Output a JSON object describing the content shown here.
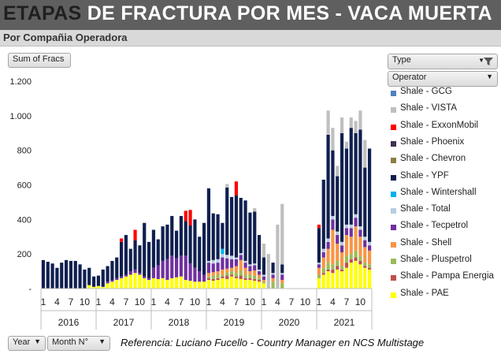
{
  "header": {
    "title_part1": "ETAPAS",
    "title_part2": " DE FRACTURA POR MES -  VACA MUERTA",
    "subtitle": "Por Compañia Operadora"
  },
  "field_buttons": {
    "value": "Sum of Fracs",
    "type": "Type",
    "operator": "Operator",
    "year": "Year",
    "month": "Month N°"
  },
  "footer": {
    "note": "Referencia: Luciano Fucello - Country Manager en NCS Multistage"
  },
  "colors": {
    "title_bar": "#5f5f5f",
    "subtitle_bar": "#d9d9d9"
  },
  "chart_data": {
    "type": "bar",
    "stacked": true,
    "title": "ETAPAS DE FRACTURA POR MES -  VACA MUERTA",
    "subtitle": "Por Compañia Operadora",
    "ylim": [
      0,
      1200
    ],
    "y_ticks": [
      0,
      200,
      400,
      600,
      800,
      1000,
      1200
    ],
    "y_tick_labels": [
      "-",
      "200",
      "400",
      "600",
      "800",
      "1.000",
      "1.200"
    ],
    "grid": false,
    "legend_position": "right",
    "years": [
      "2016",
      "2017",
      "2018",
      "2019",
      "2020",
      "2021"
    ],
    "month_tick_labels": [
      "1",
      "4",
      "7",
      "10"
    ],
    "categories": [
      "2016-01",
      "2016-02",
      "2016-03",
      "2016-04",
      "2016-05",
      "2016-06",
      "2016-07",
      "2016-08",
      "2016-09",
      "2016-10",
      "2016-11",
      "2016-12",
      "2017-01",
      "2017-02",
      "2017-03",
      "2017-04",
      "2017-05",
      "2017-06",
      "2017-07",
      "2017-08",
      "2017-09",
      "2017-10",
      "2017-11",
      "2017-12",
      "2018-01",
      "2018-02",
      "2018-03",
      "2018-04",
      "2018-05",
      "2018-06",
      "2018-07",
      "2018-08",
      "2018-09",
      "2018-10",
      "2018-11",
      "2018-12",
      "2019-01",
      "2019-02",
      "2019-03",
      "2019-04",
      "2019-05",
      "2019-06",
      "2019-07",
      "2019-08",
      "2019-09",
      "2019-10",
      "2019-11",
      "2019-12",
      "2020-01",
      "2020-02",
      "2020-03",
      "2020-04",
      "2020-05",
      "2020-06",
      "2020-07",
      "2020-08",
      "2020-09",
      "2020-10",
      "2020-11",
      "2020-12",
      "2021-01",
      "2021-02",
      "2021-03",
      "2021-04",
      "2021-05",
      "2021-06",
      "2021-07",
      "2021-08",
      "2021-09",
      "2021-10",
      "2021-11",
      "2021-12"
    ],
    "series": [
      {
        "name": "Shale - PAE",
        "color": "#ffff00",
        "values": [
          0,
          0,
          0,
          0,
          0,
          0,
          0,
          0,
          0,
          0,
          20,
          10,
          15,
          10,
          30,
          40,
          50,
          60,
          70,
          80,
          90,
          80,
          60,
          50,
          60,
          55,
          60,
          50,
          60,
          65,
          70,
          50,
          45,
          40,
          40,
          40,
          50,
          45,
          50,
          60,
          55,
          70,
          60,
          55,
          50,
          50,
          45,
          40,
          30,
          0,
          0,
          0,
          0,
          0,
          0,
          0,
          0,
          0,
          0,
          0,
          60,
          80,
          100,
          90,
          110,
          100,
          120,
          150,
          160,
          140,
          120,
          110
        ]
      },
      {
        "name": "Shale - Pampa Energia",
        "color": "#c0504d",
        "values": [
          0,
          0,
          0,
          0,
          0,
          0,
          0,
          0,
          0,
          0,
          0,
          0,
          0,
          0,
          0,
          0,
          0,
          0,
          0,
          0,
          0,
          0,
          0,
          0,
          0,
          0,
          0,
          0,
          0,
          0,
          0,
          0,
          0,
          0,
          0,
          0,
          10,
          10,
          10,
          10,
          20,
          10,
          10,
          20,
          10,
          10,
          10,
          10,
          0,
          0,
          0,
          0,
          0,
          0,
          0,
          0,
          0,
          0,
          0,
          0,
          0,
          10,
          10,
          20,
          20,
          10,
          30,
          20,
          20,
          20,
          10,
          10
        ]
      },
      {
        "name": "Shale - Pluspetrol",
        "color": "#9bbb59",
        "values": [
          0,
          0,
          0,
          0,
          0,
          0,
          0,
          0,
          0,
          0,
          0,
          0,
          0,
          0,
          0,
          0,
          0,
          0,
          0,
          0,
          0,
          0,
          0,
          0,
          0,
          0,
          0,
          0,
          0,
          0,
          0,
          0,
          0,
          0,
          0,
          0,
          10,
          20,
          20,
          10,
          20,
          20,
          20,
          30,
          20,
          20,
          20,
          10,
          10,
          0,
          40,
          0,
          30,
          0,
          0,
          0,
          0,
          0,
          0,
          0,
          20,
          30,
          40,
          30,
          30,
          20,
          40,
          30,
          40,
          30,
          20,
          20
        ]
      },
      {
        "name": "Shale - Shell",
        "color": "#f79646",
        "values": [
          0,
          0,
          0,
          0,
          0,
          0,
          0,
          0,
          0,
          0,
          0,
          0,
          0,
          0,
          0,
          0,
          0,
          0,
          0,
          0,
          0,
          0,
          0,
          0,
          0,
          0,
          0,
          0,
          0,
          0,
          0,
          0,
          0,
          0,
          0,
          0,
          20,
          20,
          20,
          30,
          20,
          20,
          40,
          60,
          40,
          20,
          30,
          20,
          10,
          0,
          20,
          0,
          20,
          0,
          0,
          0,
          0,
          0,
          0,
          0,
          40,
          60,
          80,
          200,
          100,
          80,
          120,
          100,
          140,
          110,
          90,
          80
        ]
      },
      {
        "name": "Shale - Tecpetrol",
        "color": "#7030a0",
        "values": [
          0,
          0,
          0,
          0,
          0,
          0,
          0,
          0,
          0,
          0,
          0,
          0,
          0,
          0,
          10,
          10,
          10,
          10,
          10,
          20,
          20,
          10,
          10,
          10,
          60,
          80,
          100,
          120,
          130,
          110,
          120,
          140,
          100,
          80,
          60,
          40,
          60,
          50,
          50,
          70,
          60,
          50,
          40,
          30,
          30,
          30,
          30,
          20,
          20,
          0,
          20,
          0,
          30,
          0,
          0,
          0,
          0,
          0,
          0,
          0,
          20,
          30,
          40,
          60,
          50,
          40,
          40,
          50,
          50,
          40,
          40,
          30
        ]
      },
      {
        "name": "Shale - Total",
        "color": "#b8cce4",
        "values": [
          0,
          0,
          0,
          0,
          0,
          0,
          0,
          0,
          0,
          0,
          0,
          0,
          0,
          0,
          0,
          0,
          0,
          0,
          0,
          0,
          0,
          0,
          0,
          0,
          0,
          0,
          0,
          0,
          0,
          0,
          0,
          0,
          0,
          0,
          0,
          0,
          10,
          20,
          20,
          20,
          20,
          20,
          10,
          10,
          10,
          10,
          10,
          10,
          10,
          0,
          10,
          0,
          10,
          0,
          0,
          0,
          0,
          0,
          0,
          0,
          10,
          20,
          20,
          20,
          20,
          20,
          20,
          20,
          20,
          20,
          20,
          20
        ]
      },
      {
        "name": "Shale - Wintershall",
        "color": "#00b0f0",
        "values": [
          0,
          0,
          0,
          0,
          0,
          0,
          0,
          0,
          0,
          0,
          0,
          0,
          0,
          0,
          0,
          0,
          0,
          0,
          0,
          0,
          0,
          0,
          0,
          0,
          0,
          0,
          0,
          0,
          0,
          0,
          0,
          0,
          0,
          0,
          0,
          0,
          0,
          0,
          0,
          30,
          0,
          0,
          0,
          0,
          0,
          0,
          0,
          0,
          0,
          0,
          0,
          0,
          0,
          0,
          0,
          0,
          0,
          0,
          0,
          0,
          0,
          0,
          0,
          0,
          0,
          0,
          0,
          0,
          0,
          0,
          0,
          0
        ]
      },
      {
        "name": "Shale - YPF",
        "color": "#0f1f4f",
        "values": [
          165,
          155,
          145,
          120,
          150,
          165,
          160,
          160,
          140,
          110,
          100,
          60,
          60,
          100,
          90,
          110,
          120,
          200,
          230,
          130,
          170,
          160,
          310,
          210,
          220,
          150,
          200,
          200,
          230,
          160,
          230,
          200,
          220,
          280,
          200,
          300,
          420,
          270,
          260,
          150,
          390,
          340,
          360,
          320,
          350,
          300,
          300,
          200,
          100,
          0,
          60,
          0,
          50,
          0,
          0,
          0,
          0,
          0,
          0,
          0,
          200,
          400,
          600,
          380,
          320,
          630,
          440,
          560,
          470,
          560,
          400,
          540
        ]
      },
      {
        "name": "Shale - Chevron",
        "color": "#8c7c47",
        "values": [
          0,
          0,
          0,
          0,
          0,
          0,
          0,
          0,
          0,
          0,
          0,
          0,
          0,
          0,
          0,
          0,
          0,
          0,
          0,
          0,
          0,
          0,
          0,
          0,
          0,
          0,
          0,
          0,
          0,
          0,
          0,
          0,
          0,
          0,
          0,
          0,
          0,
          0,
          0,
          0,
          0,
          0,
          0,
          0,
          0,
          0,
          0,
          0,
          0,
          0,
          0,
          0,
          0,
          0,
          0,
          0,
          0,
          0,
          0,
          0,
          0,
          0,
          0,
          0,
          0,
          0,
          0,
          0,
          0,
          0,
          0,
          0
        ]
      },
      {
        "name": "Shale - Phoenix",
        "color": "#403152",
        "values": [
          0,
          0,
          0,
          0,
          0,
          0,
          0,
          0,
          0,
          0,
          0,
          0,
          0,
          0,
          0,
          0,
          0,
          0,
          0,
          0,
          0,
          0,
          0,
          0,
          0,
          0,
          0,
          0,
          0,
          0,
          0,
          0,
          0,
          0,
          0,
          0,
          0,
          0,
          0,
          0,
          0,
          0,
          0,
          0,
          0,
          0,
          0,
          0,
          0,
          0,
          0,
          0,
          0,
          0,
          0,
          0,
          0,
          0,
          0,
          0,
          0,
          0,
          0,
          0,
          0,
          0,
          0,
          0,
          0,
          0,
          0,
          0
        ]
      },
      {
        "name": "Shale - ExxonMobil",
        "color": "#ff0000",
        "values": [
          0,
          0,
          0,
          0,
          0,
          0,
          0,
          0,
          0,
          0,
          0,
          0,
          0,
          0,
          0,
          0,
          0,
          20,
          0,
          0,
          60,
          0,
          0,
          0,
          0,
          0,
          0,
          0,
          0,
          0,
          0,
          60,
          90,
          0,
          0,
          0,
          0,
          0,
          0,
          0,
          0,
          0,
          80,
          0,
          0,
          0,
          0,
          0,
          0,
          0,
          0,
          0,
          0,
          0,
          0,
          0,
          0,
          0,
          0,
          0,
          20,
          0,
          0,
          0,
          0,
          0,
          0,
          0,
          0,
          0,
          0,
          0
        ]
      },
      {
        "name": "Shale - VISTA",
        "color": "#bfbfbf",
        "values": [
          0,
          0,
          0,
          0,
          0,
          0,
          0,
          0,
          0,
          0,
          0,
          0,
          0,
          0,
          0,
          0,
          0,
          0,
          0,
          0,
          0,
          0,
          0,
          0,
          0,
          0,
          0,
          0,
          0,
          0,
          0,
          0,
          0,
          0,
          0,
          0,
          0,
          0,
          0,
          0,
          20,
          0,
          0,
          0,
          0,
          0,
          20,
          0,
          80,
          200,
          0,
          370,
          350,
          0,
          0,
          0,
          0,
          0,
          0,
          0,
          0,
          0,
          140,
          130,
          60,
          90,
          40,
          60,
          70,
          110,
          160,
          0
        ]
      },
      {
        "name": "Shale - GCG",
        "color": "#4f81bd",
        "values": [
          0,
          0,
          0,
          0,
          0,
          0,
          0,
          0,
          0,
          0,
          0,
          0,
          0,
          0,
          0,
          0,
          0,
          0,
          0,
          0,
          0,
          0,
          0,
          0,
          0,
          0,
          0,
          0,
          0,
          0,
          0,
          0,
          0,
          0,
          0,
          0,
          0,
          0,
          0,
          0,
          0,
          0,
          0,
          0,
          0,
          0,
          0,
          0,
          0,
          0,
          0,
          0,
          0,
          0,
          0,
          0,
          0,
          0,
          0,
          0,
          0,
          0,
          0,
          0,
          0,
          0,
          0,
          0,
          0,
          0,
          0,
          0
        ]
      }
    ],
    "legend_order": [
      "Shale - GCG",
      "Shale - VISTA",
      "Shale - ExxonMobil",
      "Shale - Phoenix",
      "Shale - Chevron",
      "Shale - YPF",
      "Shale - Wintershall",
      "Shale - Total",
      "Shale - Tecpetrol",
      "Shale - Shell",
      "Shale - Pluspetrol",
      "Shale - Pampa Energia",
      "Shale - PAE"
    ]
  }
}
